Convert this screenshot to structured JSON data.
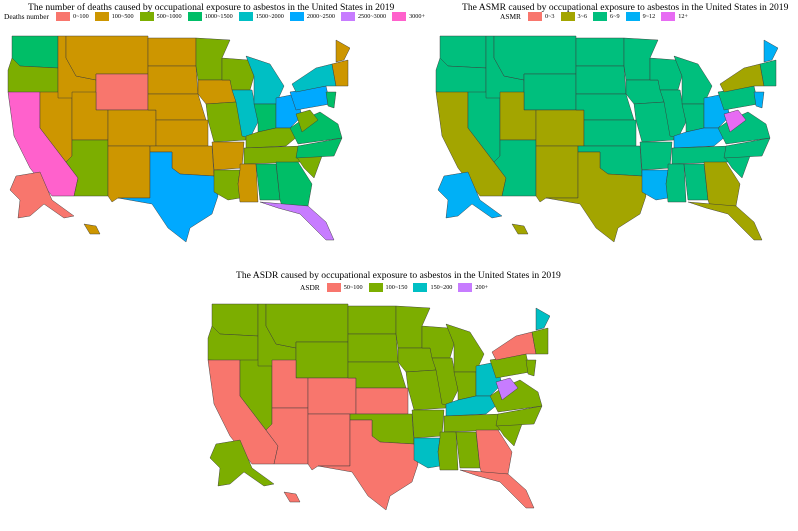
{
  "maps": [
    {
      "title": "The number of deaths caused by occupational exposure to asbestos in the United States in 2019",
      "legend_title": "Deaths number",
      "legend": [
        {
          "label": "0~100",
          "color": "#f8766d"
        },
        {
          "label": "100~500",
          "color": "#cd9600"
        },
        {
          "label": "500~1000",
          "color": "#7cae00"
        },
        {
          "label": "1000~1500",
          "color": "#00be67"
        },
        {
          "label": "1500~2000",
          "color": "#00bfc4"
        },
        {
          "label": "2000~2500",
          "color": "#00a9ff"
        },
        {
          "label": "2500~3000",
          "color": "#c77cff"
        },
        {
          "label": "3000+",
          "color": "#ff61cc"
        }
      ],
      "regions": {
        "WA": "#00be67",
        "OR": "#7cae00",
        "CA": "#ff61cc",
        "NV": "#cd9600",
        "ID": "#cd9600",
        "MT": "#cd9600",
        "WY": "#f8766d",
        "UT": "#cd9600",
        "AZ": "#7cae00",
        "CO": "#cd9600",
        "NM": "#cd9600",
        "ND": "#cd9600",
        "SD": "#cd9600",
        "NE": "#cd9600",
        "KS": "#cd9600",
        "OK": "#cd9600",
        "TX": "#00a9ff",
        "MN": "#7cae00",
        "IA": "#cd9600",
        "MO": "#7cae00",
        "AR": "#cd9600",
        "LA": "#7cae00",
        "WI": "#7cae00",
        "IL": "#00bfc4",
        "MI": "#00bfc4",
        "IN": "#00be67",
        "OH": "#00a9ff",
        "KY": "#7cae00",
        "TN": "#7cae00",
        "MS": "#cd9600",
        "AL": "#00be67",
        "GA": "#00be67",
        "FL": "#c77cff",
        "SC": "#7cae00",
        "NC": "#00be67",
        "VA": "#00be67",
        "WV": "#7cae00",
        "PA": "#00a9ff",
        "NY": "#00bfc4",
        "NE_STATES": "#cd9600",
        "ME": "#cd9600",
        "NJ": "#00be67",
        "AK": "#f8766d",
        "HI": "#cd9600"
      }
    },
    {
      "title": "The ASMR caused by occupational exposure to asbestos in the United States in 2019",
      "legend_title": "ASMR",
      "legend": [
        {
          "label": "0~3",
          "color": "#f8766d"
        },
        {
          "label": "3~6",
          "color": "#a3a500"
        },
        {
          "label": "6~9",
          "color": "#00bf7d"
        },
        {
          "label": "9~12",
          "color": "#00b0f6"
        },
        {
          "label": "12+",
          "color": "#e76bf3"
        }
      ],
      "regions": {
        "WA": "#00bf7d",
        "OR": "#00bf7d",
        "CA": "#a3a500",
        "NV": "#00bf7d",
        "ID": "#00bf7d",
        "MT": "#00bf7d",
        "WY": "#00bf7d",
        "UT": "#a3a500",
        "AZ": "#00bf7d",
        "CO": "#a3a500",
        "NM": "#a3a500",
        "ND": "#00bf7d",
        "SD": "#00bf7d",
        "NE": "#00bf7d",
        "KS": "#00bf7d",
        "OK": "#00bf7d",
        "TX": "#a3a500",
        "MN": "#00bf7d",
        "IA": "#00bf7d",
        "MO": "#00bf7d",
        "AR": "#00bf7d",
        "LA": "#00b0f6",
        "WI": "#00bf7d",
        "IL": "#00bf7d",
        "MI": "#00bf7d",
        "IN": "#00bf7d",
        "OH": "#00b0f6",
        "KY": "#00b0f6",
        "TN": "#00bf7d",
        "MS": "#00bf7d",
        "AL": "#00bf7d",
        "GA": "#a3a500",
        "FL": "#a3a500",
        "SC": "#00bf7d",
        "NC": "#00bf7d",
        "VA": "#00bf7d",
        "WV": "#e76bf3",
        "PA": "#00bf7d",
        "NY": "#a3a500",
        "NE_STATES": "#00bf7d",
        "ME": "#00b0f6",
        "NJ": "#00b0f6",
        "AK": "#00b0f6",
        "HI": "#a3a500"
      }
    },
    {
      "title": "The ASDR caused by occupational exposure to asbestos in the United States in 2019",
      "legend_title": "ASDR",
      "legend": [
        {
          "label": "50~100",
          "color": "#f8766d"
        },
        {
          "label": "100~150",
          "color": "#7cae00"
        },
        {
          "label": "150~200",
          "color": "#00bfc4"
        },
        {
          "label": "200+",
          "color": "#c77cff"
        }
      ],
      "regions": {
        "WA": "#7cae00",
        "OR": "#7cae00",
        "CA": "#f8766d",
        "NV": "#7cae00",
        "ID": "#7cae00",
        "MT": "#7cae00",
        "WY": "#7cae00",
        "UT": "#f8766d",
        "AZ": "#f8766d",
        "CO": "#f8766d",
        "NM": "#f8766d",
        "ND": "#7cae00",
        "SD": "#7cae00",
        "NE": "#7cae00",
        "KS": "#f8766d",
        "OK": "#7cae00",
        "TX": "#f8766d",
        "MN": "#7cae00",
        "IA": "#7cae00",
        "MO": "#7cae00",
        "AR": "#7cae00",
        "LA": "#00bfc4",
        "WI": "#7cae00",
        "IL": "#7cae00",
        "MI": "#7cae00",
        "IN": "#7cae00",
        "OH": "#00bfc4",
        "KY": "#00bfc4",
        "TN": "#7cae00",
        "MS": "#7cae00",
        "AL": "#7cae00",
        "GA": "#f8766d",
        "FL": "#f8766d",
        "SC": "#7cae00",
        "NC": "#7cae00",
        "VA": "#7cae00",
        "WV": "#c77cff",
        "PA": "#7cae00",
        "NY": "#f8766d",
        "NE_STATES": "#7cae00",
        "ME": "#00bfc4",
        "NJ": "#7cae00",
        "AK": "#7cae00",
        "HI": "#f8766d"
      }
    }
  ]
}
